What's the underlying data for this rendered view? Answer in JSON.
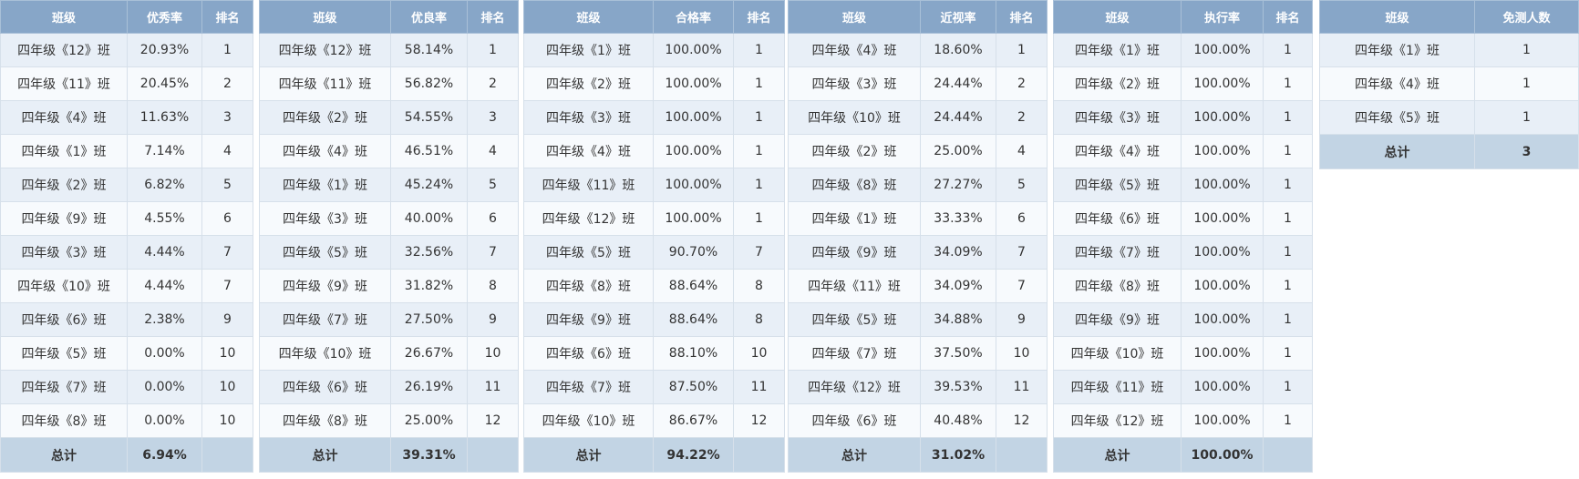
{
  "tables": [
    {
      "id": "excellent",
      "headers": [
        "班级",
        "优秀率",
        "排名"
      ],
      "rows": [
        [
          "四年级《12》班",
          "20.93%",
          "1"
        ],
        [
          "四年级《11》班",
          "20.45%",
          "2"
        ],
        [
          "四年级《4》班",
          "11.63%",
          "3"
        ],
        [
          "四年级《1》班",
          "7.14%",
          "4"
        ],
        [
          "四年级《2》班",
          "6.82%",
          "5"
        ],
        [
          "四年级《9》班",
          "4.55%",
          "6"
        ],
        [
          "四年级《3》班",
          "4.44%",
          "7"
        ],
        [
          "四年级《10》班",
          "4.44%",
          "7"
        ],
        [
          "四年级《6》班",
          "2.38%",
          "9"
        ],
        [
          "四年级《5》班",
          "0.00%",
          "10"
        ],
        [
          "四年级《7》班",
          "0.00%",
          "10"
        ],
        [
          "四年级《8》班",
          "0.00%",
          "10"
        ]
      ],
      "total": [
        "总计",
        "6.94%",
        ""
      ]
    },
    {
      "id": "good",
      "headers": [
        "班级",
        "优良率",
        "排名"
      ],
      "rows": [
        [
          "四年级《12》班",
          "58.14%",
          "1"
        ],
        [
          "四年级《11》班",
          "56.82%",
          "2"
        ],
        [
          "四年级《2》班",
          "54.55%",
          "3"
        ],
        [
          "四年级《4》班",
          "46.51%",
          "4"
        ],
        [
          "四年级《1》班",
          "45.24%",
          "5"
        ],
        [
          "四年级《3》班",
          "40.00%",
          "6"
        ],
        [
          "四年级《5》班",
          "32.56%",
          "7"
        ],
        [
          "四年级《9》班",
          "31.82%",
          "8"
        ],
        [
          "四年级《7》班",
          "27.50%",
          "9"
        ],
        [
          "四年级《10》班",
          "26.67%",
          "10"
        ],
        [
          "四年级《6》班",
          "26.19%",
          "11"
        ],
        [
          "四年级《8》班",
          "25.00%",
          "12"
        ]
      ],
      "total": [
        "总计",
        "39.31%",
        ""
      ]
    },
    {
      "id": "pass",
      "headers": [
        "班级",
        "合格率",
        "排名"
      ],
      "rows": [
        [
          "四年级《1》班",
          "100.00%",
          "1"
        ],
        [
          "四年级《2》班",
          "100.00%",
          "1"
        ],
        [
          "四年级《3》班",
          "100.00%",
          "1"
        ],
        [
          "四年级《4》班",
          "100.00%",
          "1"
        ],
        [
          "四年级《11》班",
          "100.00%",
          "1"
        ],
        [
          "四年级《12》班",
          "100.00%",
          "1"
        ],
        [
          "四年级《5》班",
          "90.70%",
          "7"
        ],
        [
          "四年级《8》班",
          "88.64%",
          "8"
        ],
        [
          "四年级《9》班",
          "88.64%",
          "8"
        ],
        [
          "四年级《6》班",
          "88.10%",
          "10"
        ],
        [
          "四年级《7》班",
          "87.50%",
          "11"
        ],
        [
          "四年级《10》班",
          "86.67%",
          "12"
        ]
      ],
      "total": [
        "总计",
        "94.22%",
        ""
      ]
    },
    {
      "id": "myopia",
      "headers": [
        "班级",
        "近视率",
        "排名"
      ],
      "rows": [
        [
          "四年级《4》班",
          "18.60%",
          "1"
        ],
        [
          "四年级《3》班",
          "24.44%",
          "2"
        ],
        [
          "四年级《10》班",
          "24.44%",
          "2"
        ],
        [
          "四年级《2》班",
          "25.00%",
          "4"
        ],
        [
          "四年级《8》班",
          "27.27%",
          "5"
        ],
        [
          "四年级《1》班",
          "33.33%",
          "6"
        ],
        [
          "四年级《9》班",
          "34.09%",
          "7"
        ],
        [
          "四年级《11》班",
          "34.09%",
          "7"
        ],
        [
          "四年级《5》班",
          "34.88%",
          "9"
        ],
        [
          "四年级《7》班",
          "37.50%",
          "10"
        ],
        [
          "四年级《12》班",
          "39.53%",
          "11"
        ],
        [
          "四年级《6》班",
          "40.48%",
          "12"
        ]
      ],
      "total": [
        "总计",
        "31.02%",
        ""
      ]
    },
    {
      "id": "execution",
      "headers": [
        "班级",
        "执行率",
        "排名"
      ],
      "rows": [
        [
          "四年级《1》班",
          "100.00%",
          "1"
        ],
        [
          "四年级《2》班",
          "100.00%",
          "1"
        ],
        [
          "四年级《3》班",
          "100.00%",
          "1"
        ],
        [
          "四年级《4》班",
          "100.00%",
          "1"
        ],
        [
          "四年级《5》班",
          "100.00%",
          "1"
        ],
        [
          "四年级《6》班",
          "100.00%",
          "1"
        ],
        [
          "四年级《7》班",
          "100.00%",
          "1"
        ],
        [
          "四年级《8》班",
          "100.00%",
          "1"
        ],
        [
          "四年级《9》班",
          "100.00%",
          "1"
        ],
        [
          "四年级《10》班",
          "100.00%",
          "1"
        ],
        [
          "四年级《11》班",
          "100.00%",
          "1"
        ],
        [
          "四年级《12》班",
          "100.00%",
          "1"
        ]
      ],
      "total": [
        "总计",
        "100.00%",
        ""
      ]
    },
    {
      "id": "exempt",
      "headers": [
        "班级",
        "免测人数"
      ],
      "rows": [
        [
          "四年级《1》班",
          "1"
        ],
        [
          "四年级《4》班",
          "1"
        ],
        [
          "四年级《5》班",
          "1"
        ]
      ],
      "total": [
        "总计",
        "3"
      ]
    }
  ]
}
